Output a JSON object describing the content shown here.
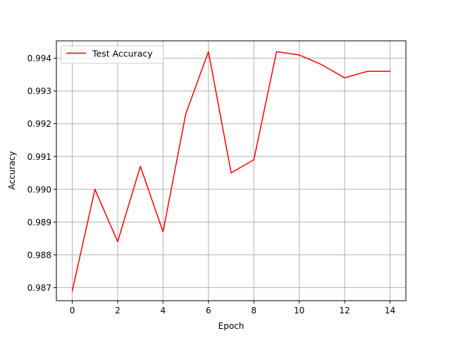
{
  "chart_data": {
    "type": "line",
    "title": "",
    "xlabel": "Epoch",
    "ylabel": "Accuracy",
    "xlim": [
      -0.7,
      14.7
    ],
    "ylim": [
      0.9866,
      0.99453
    ],
    "xticks": [
      0,
      2,
      4,
      6,
      8,
      10,
      12,
      14
    ],
    "xtick_labels": [
      "0",
      "2",
      "4",
      "6",
      "8",
      "10",
      "12",
      "14"
    ],
    "yticks": [
      0.987,
      0.988,
      0.989,
      0.99,
      0.991,
      0.992,
      0.993,
      0.994
    ],
    "ytick_labels": [
      "0.987",
      "0.988",
      "0.989",
      "0.990",
      "0.991",
      "0.992",
      "0.993",
      "0.994"
    ],
    "grid": true,
    "legend": {
      "position": "top-left"
    },
    "series": [
      {
        "name": "Test Accuracy",
        "color": "#ff0000",
        "x": [
          0,
          1,
          2,
          3,
          4,
          5,
          6,
          7,
          8,
          9,
          10,
          11,
          12,
          13,
          14
        ],
        "values": [
          0.9869,
          0.99,
          0.9884,
          0.9907,
          0.9887,
          0.9923,
          0.9942,
          0.9905,
          0.9909,
          0.9942,
          0.9941,
          0.9938,
          0.9934,
          0.9936,
          0.9936
        ]
      }
    ]
  }
}
